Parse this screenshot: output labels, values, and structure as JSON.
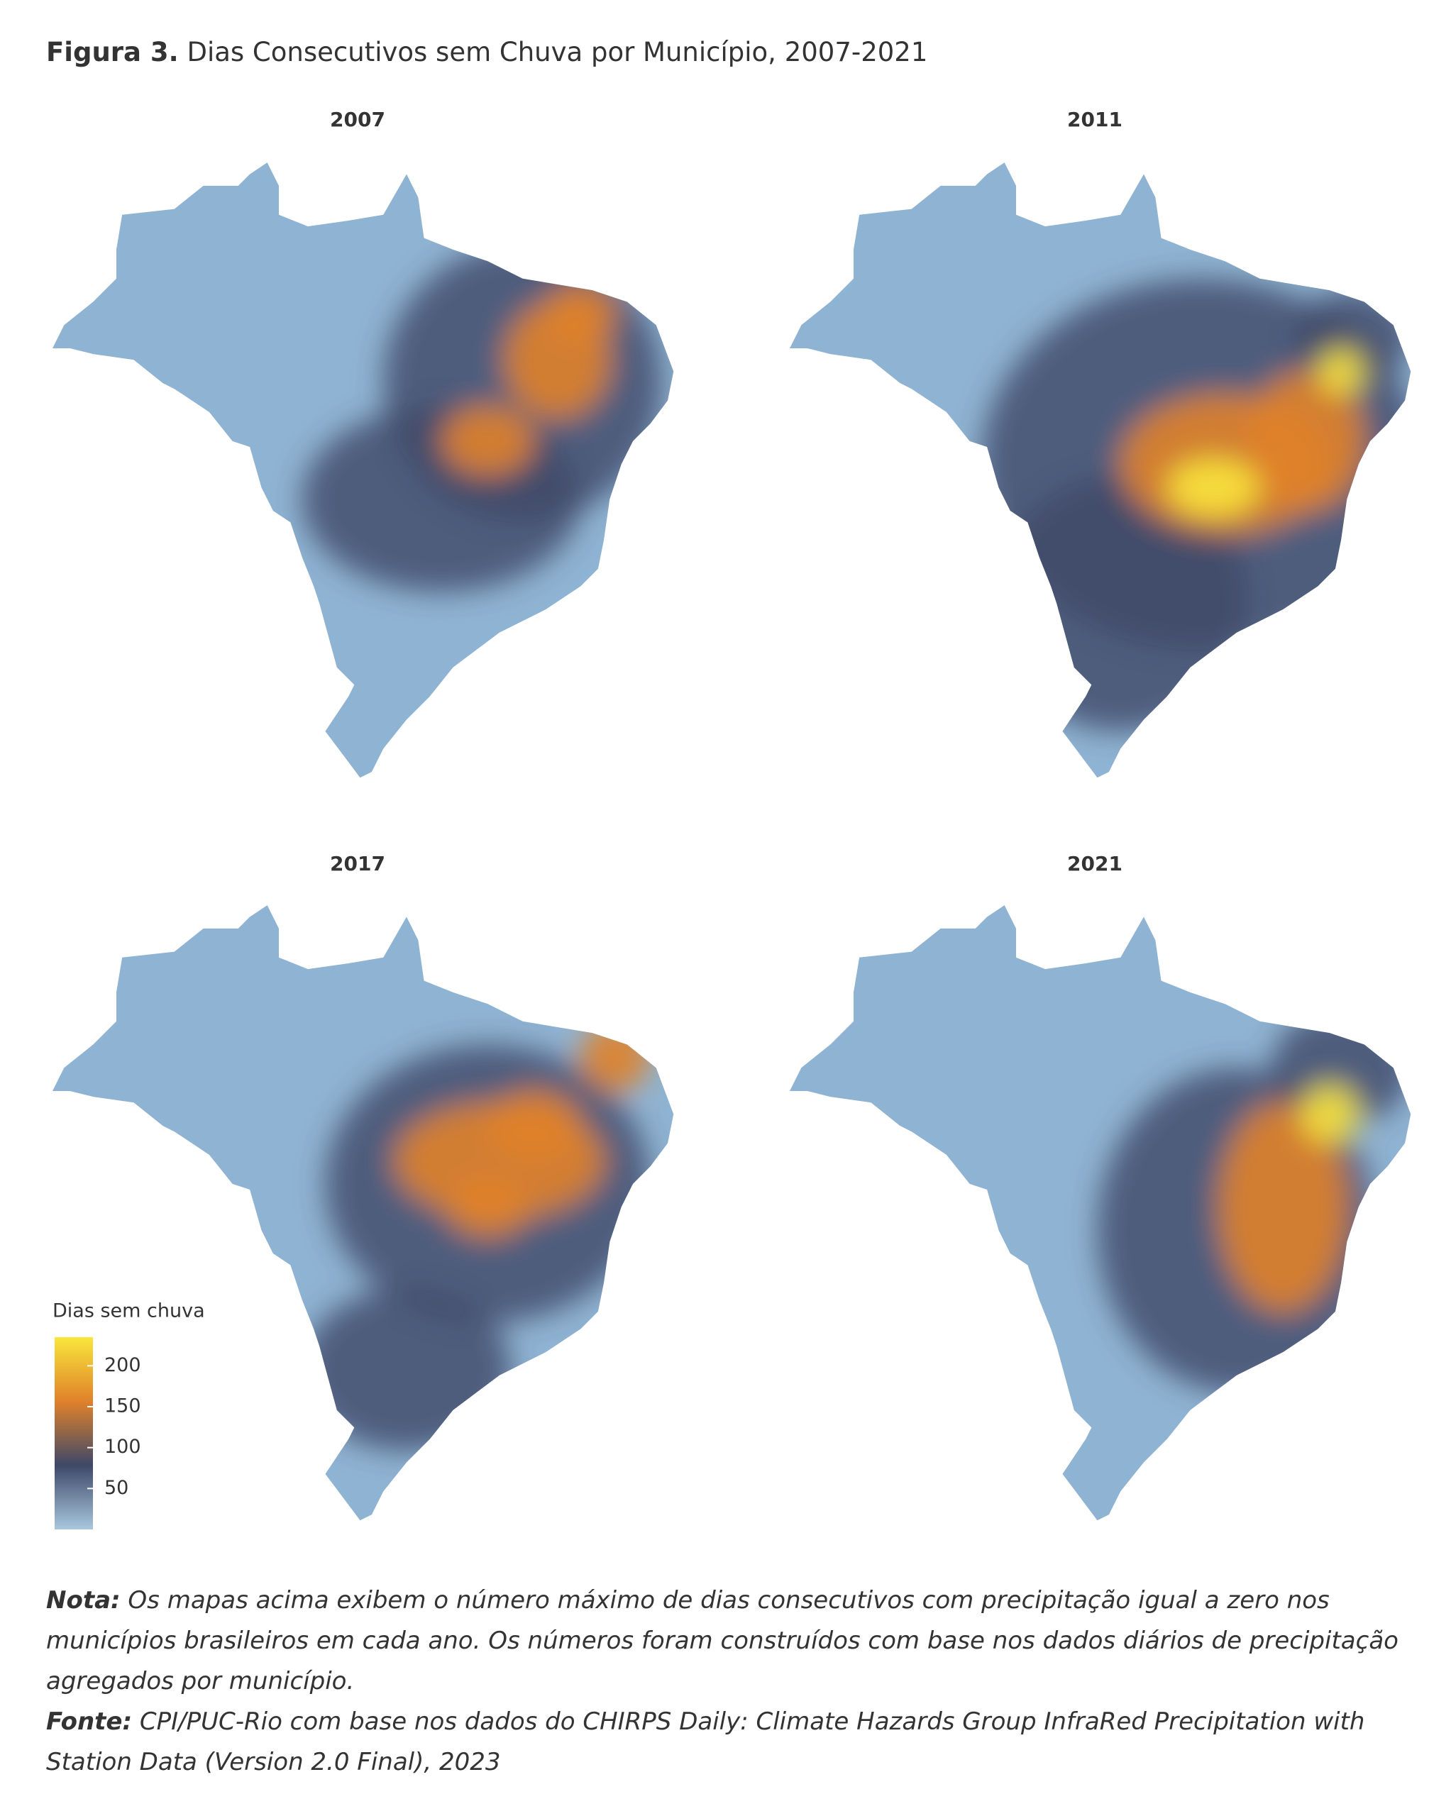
{
  "figure": {
    "label": "Figura 3.",
    "title": "Dias Consecutivos sem Chuva por Município, 2007-2021"
  },
  "maps": [
    {
      "year": "2007"
    },
    {
      "year": "2011"
    },
    {
      "year": "2017"
    },
    {
      "year": "2021"
    }
  ],
  "legend": {
    "title": "Dias sem chuva",
    "lim": [
      0,
      235
    ],
    "ticks": [
      50,
      100,
      150,
      200
    ],
    "colors": [
      "#a8c7df",
      "#3e4868",
      "#e0822a",
      "#f9e63c"
    ]
  },
  "note": {
    "label": "Nota:",
    "text": "Os mapas acima exibem o número máximo de dias consecutivos com precipitação igual a zero nos municípios brasileiros em cada ano. Os números foram construídos com base nos dados diários de precipitação agregados por município."
  },
  "source": {
    "label": "Fonte:",
    "text": "CPI/PUC-Rio com base nos dados do CHIRPS Daily: Climate Hazards Group InfraRed Precipitation with Station Data (Version 2.0 Final), 2023"
  }
}
